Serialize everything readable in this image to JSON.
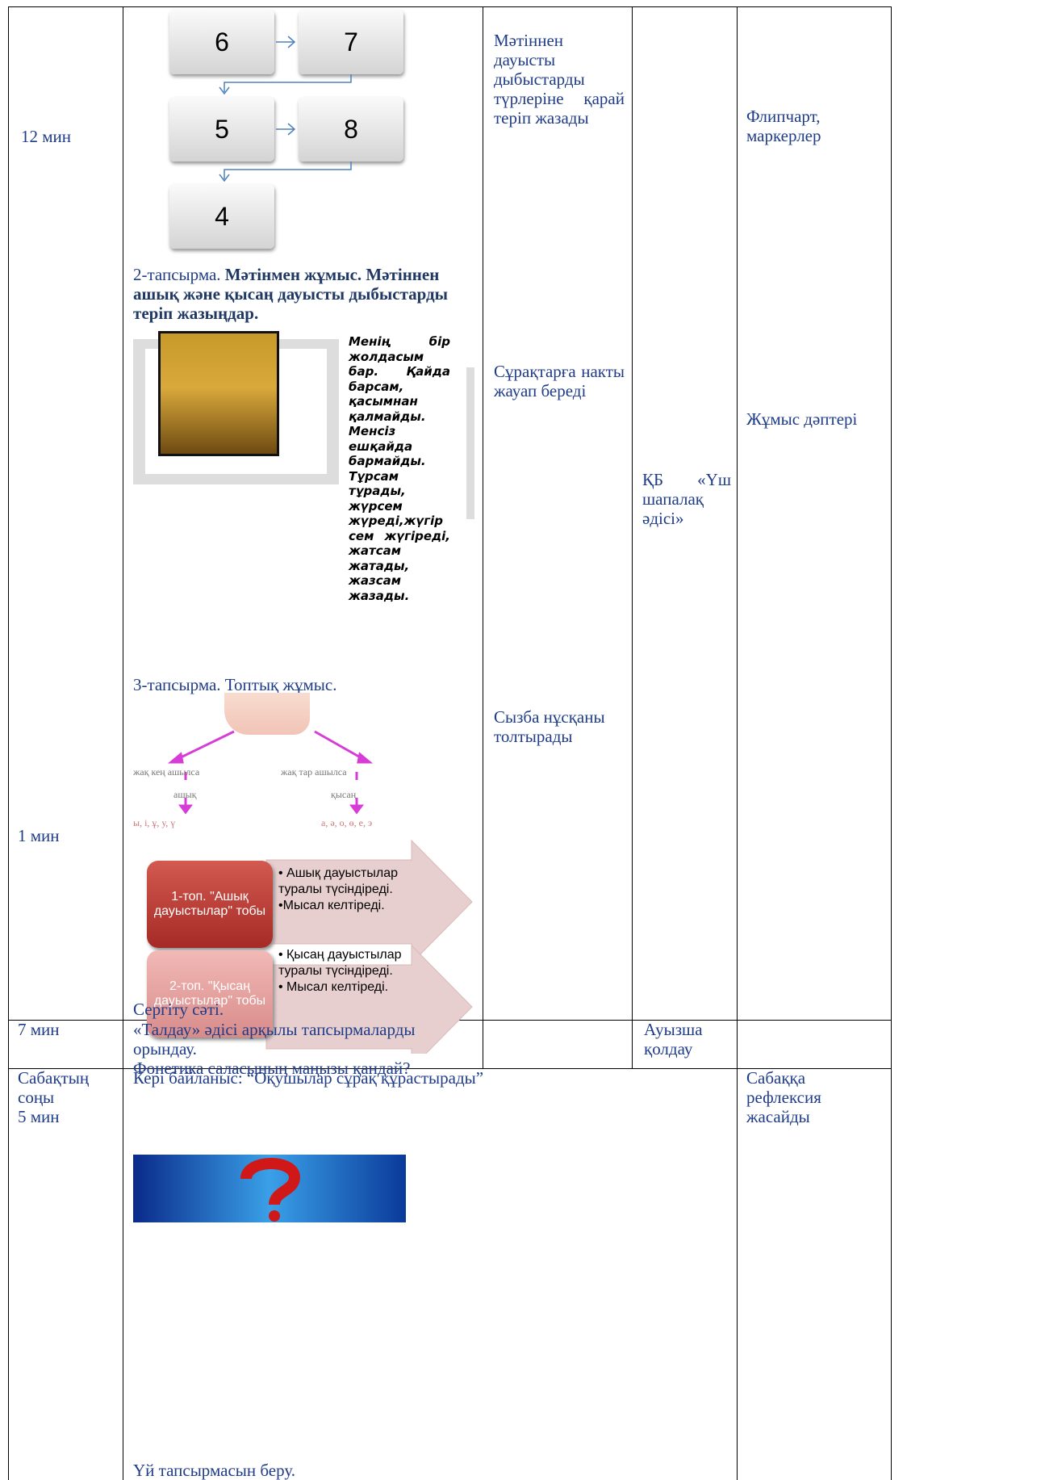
{
  "table": {
    "rows": [
      {
        "time": [
          "12 мин",
          "1 мин"
        ],
        "flow_boxes": [
          "6",
          "7",
          "5",
          "8",
          "4"
        ],
        "task2": {
          "label": "2-тапсырма.",
          "bold": "Мәтінмен жұмыс. Мәтіннен ашық және қысаң дауысты дыбыстарды теріп жазыңдар."
        },
        "riddle": "Менің бір жолдасым бар. Қайда барсам, қасымнан қалмайды. Менсіз ешқайда бармайды. Тұрсам тұрады, жүрсем жүреді,жүгір сем жүгіреді, жатсам жатады, жазсам жазады.",
        "task3": "3-тапсырма. Топтық жұмыс.",
        "diagram": {
          "left_branch": "жақ кең ашылса",
          "left_type": "ашық",
          "left_letters": "ы, і, ұ, у, ү",
          "right_branch": "жақ тар ашылса",
          "right_type": "қысаң",
          "right_letters": "а, ә, о, ө, е, э"
        },
        "groups": [
          {
            "name": "1-топ. \"Ашық дауыстылар\" тобы",
            "bullets": [
              "Ашық дауыстылар туралы түсіндіреді.",
              "Мысал келтіреді."
            ]
          },
          {
            "name": "2-топ. \"Қысаң дауыстылар\" тобы",
            "bullets": [
              "Қысаң дауыстылар туралы түсіндіреді.",
              "Мысал келтіреді."
            ]
          }
        ],
        "break": "Сергіту сәті.",
        "outcomes": [
          "Мәтіннен дауысты дыбыстарды түрлеріне қарай теріп жазады",
          "Сұрақтарға накты жауап береді",
          "Сызба нұсқаны толтырады"
        ],
        "assessment": "ҚБ «Үш шапалақ әдісі»",
        "resources": [
          "Флипчарт, маркерлер",
          "Жұмыс дәптері"
        ]
      },
      {
        "time": "7 мин",
        "content": [
          "«Талдау» әдісі арқылы тапсырмаларды орындау.",
          "Фонетика саласының маңызы қандай?"
        ],
        "assessment": "Ауызша қолдау"
      },
      {
        "time": [
          "Сабақтың соңы",
          "5 мин"
        ],
        "content": [
          "Кері байланыс: “Оқушылар сұрақ құрастырады”",
          "Үй тапсырмасын беру."
        ],
        "resources": "Сабаққа рефлексия жасайды"
      }
    ]
  }
}
